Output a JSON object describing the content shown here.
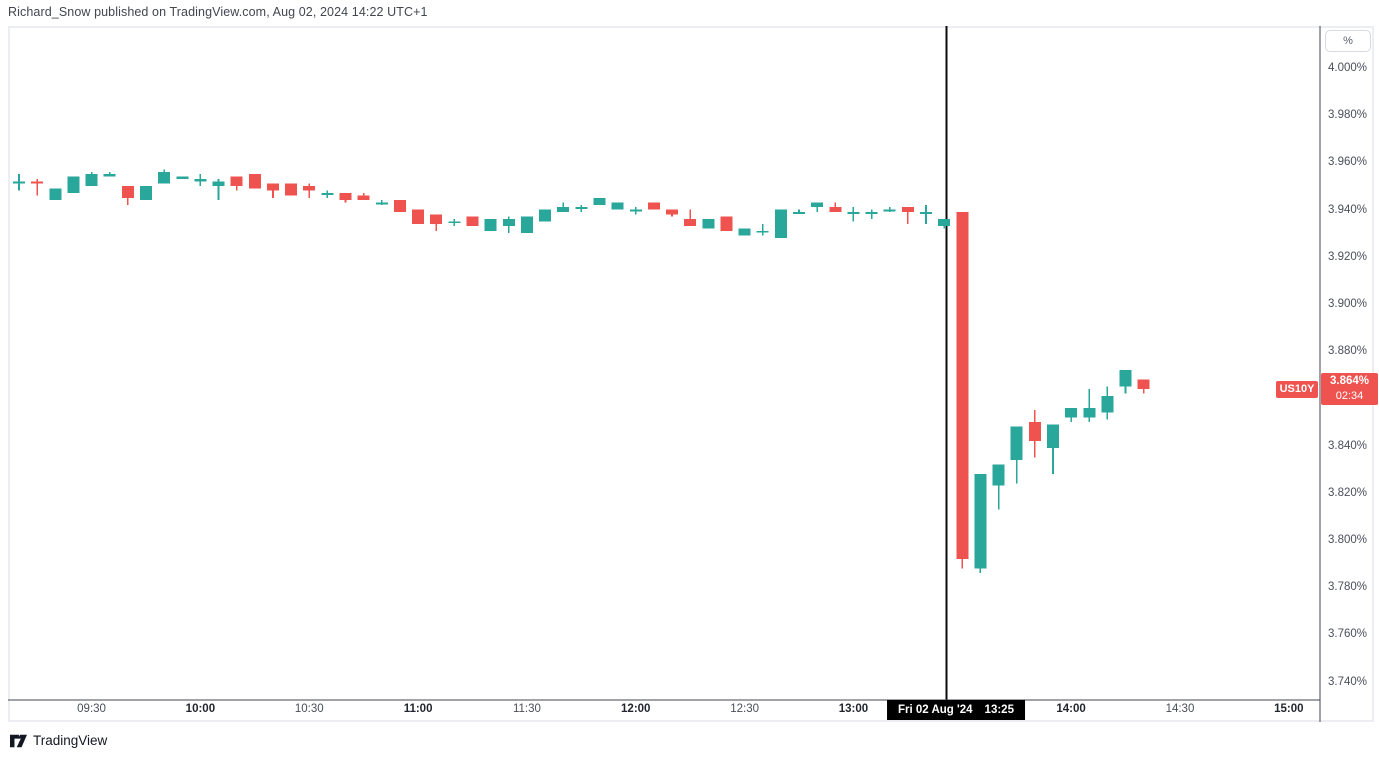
{
  "header": {
    "attribution": "Richard_Snow published on TradingView.com, Aug 02, 2024 14:22 UTC+1"
  },
  "footer": {
    "brand": "TradingView"
  },
  "price_scale": {
    "unit_button": "%"
  },
  "price_line": {
    "symbol": "US10Y",
    "price": "3.864%",
    "countdown": "02:34",
    "color": "#ef5350"
  },
  "event_marker": {
    "date": "Fri 02 Aug '24",
    "time": "13:25"
  },
  "chart_data": {
    "type": "candlestick",
    "symbol": "US10Y",
    "interval": "5m",
    "unit": "%",
    "grid": false,
    "legend": false,
    "up_color": "#2aa79b",
    "down_color": "#ef5350",
    "y_axis": {
      "unit": "%",
      "ticks": [
        4.0,
        3.98,
        3.96,
        3.94,
        3.92,
        3.9,
        3.88,
        3.84,
        3.82,
        3.8,
        3.78,
        3.76,
        3.74
      ],
      "range": [
        3.731,
        4.012
      ]
    },
    "x_axis": {
      "ticks": [
        "09:30",
        "10:00",
        "10:30",
        "11:00",
        "11:30",
        "12:00",
        "12:30",
        "13:00",
        "14:00",
        "14:30",
        "15:00"
      ]
    },
    "event_line_time": "13:25",
    "last_price": 3.864,
    "columns": [
      "time",
      "open",
      "high",
      "low",
      "close"
    ],
    "candles": [
      [
        "09:10",
        3.951,
        3.955,
        3.948,
        3.952
      ],
      [
        "09:15",
        3.952,
        3.953,
        3.946,
        3.951
      ],
      [
        "09:20",
        3.944,
        3.949,
        3.944,
        3.949
      ],
      [
        "09:25",
        3.947,
        3.954,
        3.947,
        3.954
      ],
      [
        "09:30",
        3.95,
        3.956,
        3.95,
        3.955
      ],
      [
        "09:35",
        3.954,
        3.956,
        3.954,
        3.955
      ],
      [
        "09:40",
        3.95,
        3.95,
        3.942,
        3.945
      ],
      [
        "09:45",
        3.944,
        3.95,
        3.944,
        3.95
      ],
      [
        "09:50",
        3.951,
        3.957,
        3.951,
        3.956
      ],
      [
        "09:55",
        3.953,
        3.954,
        3.953,
        3.954
      ],
      [
        "10:00",
        3.952,
        3.955,
        3.95,
        3.953
      ],
      [
        "10:05",
        3.95,
        3.953,
        3.944,
        3.952
      ],
      [
        "10:10",
        3.954,
        3.954,
        3.948,
        3.95
      ],
      [
        "10:15",
        3.955,
        3.955,
        3.949,
        3.949
      ],
      [
        "10:20",
        3.951,
        3.951,
        3.945,
        3.948
      ],
      [
        "10:25",
        3.951,
        3.951,
        3.946,
        3.946
      ],
      [
        "10:30",
        3.95,
        3.951,
        3.945,
        3.948
      ],
      [
        "10:35",
        3.947,
        3.948,
        3.945,
        3.947
      ],
      [
        "10:40",
        3.947,
        3.947,
        3.943,
        3.944
      ],
      [
        "10:45",
        3.946,
        3.947,
        3.944,
        3.944
      ],
      [
        "10:50",
        3.943,
        3.944,
        3.942,
        3.943
      ],
      [
        "10:55",
        3.944,
        3.944,
        3.939,
        3.939
      ],
      [
        "11:00",
        3.94,
        3.94,
        3.934,
        3.934
      ],
      [
        "11:05",
        3.938,
        3.938,
        3.931,
        3.934
      ],
      [
        "11:10",
        3.935,
        3.936,
        3.933,
        3.935
      ],
      [
        "11:15",
        3.937,
        3.937,
        3.933,
        3.933
      ],
      [
        "11:20",
        3.931,
        3.936,
        3.931,
        3.936
      ],
      [
        "11:25",
        3.933,
        3.937,
        3.93,
        3.936
      ],
      [
        "11:30",
        3.93,
        3.937,
        3.93,
        3.937
      ],
      [
        "11:35",
        3.935,
        3.94,
        3.935,
        3.94
      ],
      [
        "11:40",
        3.939,
        3.943,
        3.939,
        3.941
      ],
      [
        "11:45",
        3.941,
        3.942,
        3.939,
        3.941
      ],
      [
        "11:50",
        3.942,
        3.945,
        3.942,
        3.945
      ],
      [
        "11:55",
        3.94,
        3.943,
        3.94,
        3.943
      ],
      [
        "12:00",
        3.94,
        3.941,
        3.938,
        3.94
      ],
      [
        "12:05",
        3.943,
        3.943,
        3.94,
        3.94
      ],
      [
        "12:10",
        3.94,
        3.94,
        3.937,
        3.938
      ],
      [
        "12:15",
        3.936,
        3.94,
        3.933,
        3.933
      ],
      [
        "12:20",
        3.932,
        3.936,
        3.932,
        3.936
      ],
      [
        "12:25",
        3.937,
        3.937,
        3.931,
        3.931
      ],
      [
        "12:30",
        3.929,
        3.932,
        3.929,
        3.932
      ],
      [
        "12:35",
        3.931,
        3.934,
        3.929,
        3.931
      ],
      [
        "12:40",
        3.928,
        3.94,
        3.928,
        3.94
      ],
      [
        "12:45",
        3.939,
        3.94,
        3.939,
        3.939
      ],
      [
        "12:50",
        3.941,
        3.943,
        3.939,
        3.943
      ],
      [
        "12:55",
        3.941,
        3.943,
        3.939,
        3.939
      ],
      [
        "13:00",
        3.939,
        3.941,
        3.935,
        3.939
      ],
      [
        "13:05",
        3.939,
        3.94,
        3.936,
        3.939
      ],
      [
        "13:10",
        3.94,
        3.941,
        3.939,
        3.94
      ],
      [
        "13:15",
        3.941,
        3.941,
        3.934,
        3.939
      ],
      [
        "13:20",
        3.939,
        3.942,
        3.934,
        3.939
      ],
      [
        "13:25",
        3.933,
        3.936,
        3.932,
        3.936
      ],
      [
        "13:30",
        3.939,
        3.939,
        3.788,
        3.792
      ],
      [
        "13:35",
        3.788,
        3.828,
        3.786,
        3.828
      ],
      [
        "13:40",
        3.823,
        3.832,
        3.813,
        3.832
      ],
      [
        "13:45",
        3.834,
        3.848,
        3.824,
        3.848
      ],
      [
        "13:50",
        3.85,
        3.855,
        3.835,
        3.842
      ],
      [
        "13:55",
        3.839,
        3.849,
        3.828,
        3.849
      ],
      [
        "14:00",
        3.852,
        3.856,
        3.85,
        3.856
      ],
      [
        "14:05",
        3.852,
        3.864,
        3.85,
        3.856
      ],
      [
        "14:10",
        3.854,
        3.865,
        3.851,
        3.861
      ],
      [
        "14:15",
        3.865,
        3.872,
        3.862,
        3.872
      ],
      [
        "14:20",
        3.868,
        3.868,
        3.862,
        3.864
      ]
    ]
  }
}
